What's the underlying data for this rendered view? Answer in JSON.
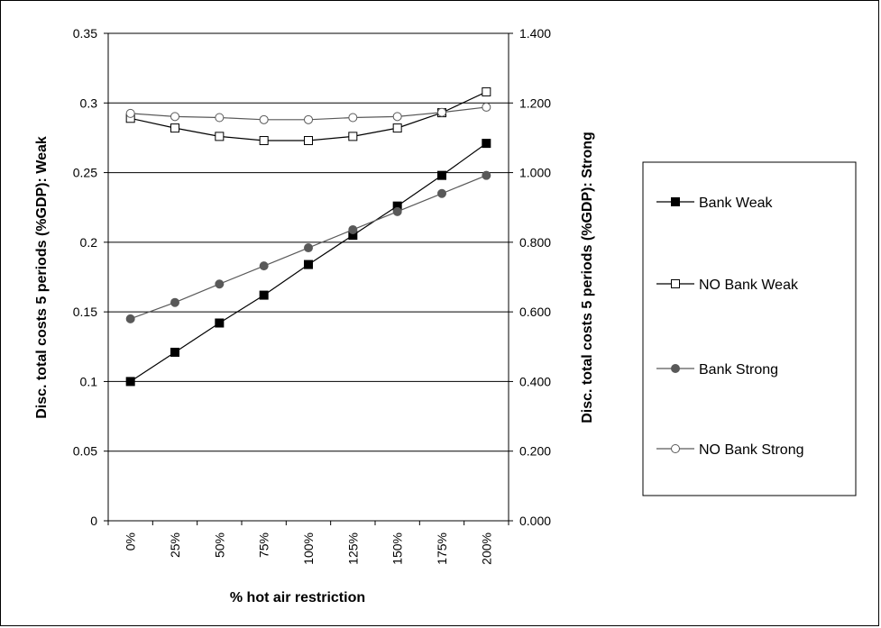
{
  "chart_data": {
    "type": "line",
    "categories": [
      "0%",
      "25%",
      "50%",
      "75%",
      "100%",
      "125%",
      "150%",
      "175%",
      "200%"
    ],
    "xlabel": "% hot air restriction",
    "ylabel_left": "Disc. total costs 5 periods (%GDP): Weak",
    "ylabel_right": "Disc. total costs 5 periods (%GDP): Strong",
    "ylim_left": [
      0,
      0.35
    ],
    "ylim_right": [
      0,
      1.4
    ],
    "yticks_left": [
      "0",
      "0.05",
      "0.1",
      "0.15",
      "0.2",
      "0.25",
      "0.3",
      "0.35"
    ],
    "yticks_right": [
      "0.000",
      "0.200",
      "0.400",
      "0.600",
      "0.800",
      "1.000",
      "1.200",
      "1.400"
    ],
    "grid": true,
    "legend_position": "right",
    "series": [
      {
        "name": "Bank Weak",
        "axis": "left",
        "marker": "filled-square",
        "values": [
          0.1,
          0.121,
          0.142,
          0.162,
          0.184,
          0.205,
          0.226,
          0.248,
          0.271
        ]
      },
      {
        "name": "NO Bank Weak",
        "axis": "left",
        "marker": "open-square",
        "values": [
          0.289,
          0.282,
          0.276,
          0.273,
          0.273,
          0.276,
          0.282,
          0.293,
          0.308
        ]
      },
      {
        "name": "Bank Strong",
        "axis": "right",
        "marker": "filled-circle",
        "values": [
          0.58,
          0.627,
          0.68,
          0.732,
          0.784,
          0.836,
          0.888,
          0.94,
          0.992
        ]
      },
      {
        "name": "NO Bank Strong",
        "axis": "right",
        "marker": "open-circle",
        "values": [
          1.17,
          1.161,
          1.158,
          1.152,
          1.152,
          1.158,
          1.161,
          1.173,
          1.188
        ]
      }
    ]
  },
  "colors": {
    "dark_series": "#000000",
    "grey_series": "#595959",
    "grid": "#000000",
    "background": "#ffffff"
  }
}
